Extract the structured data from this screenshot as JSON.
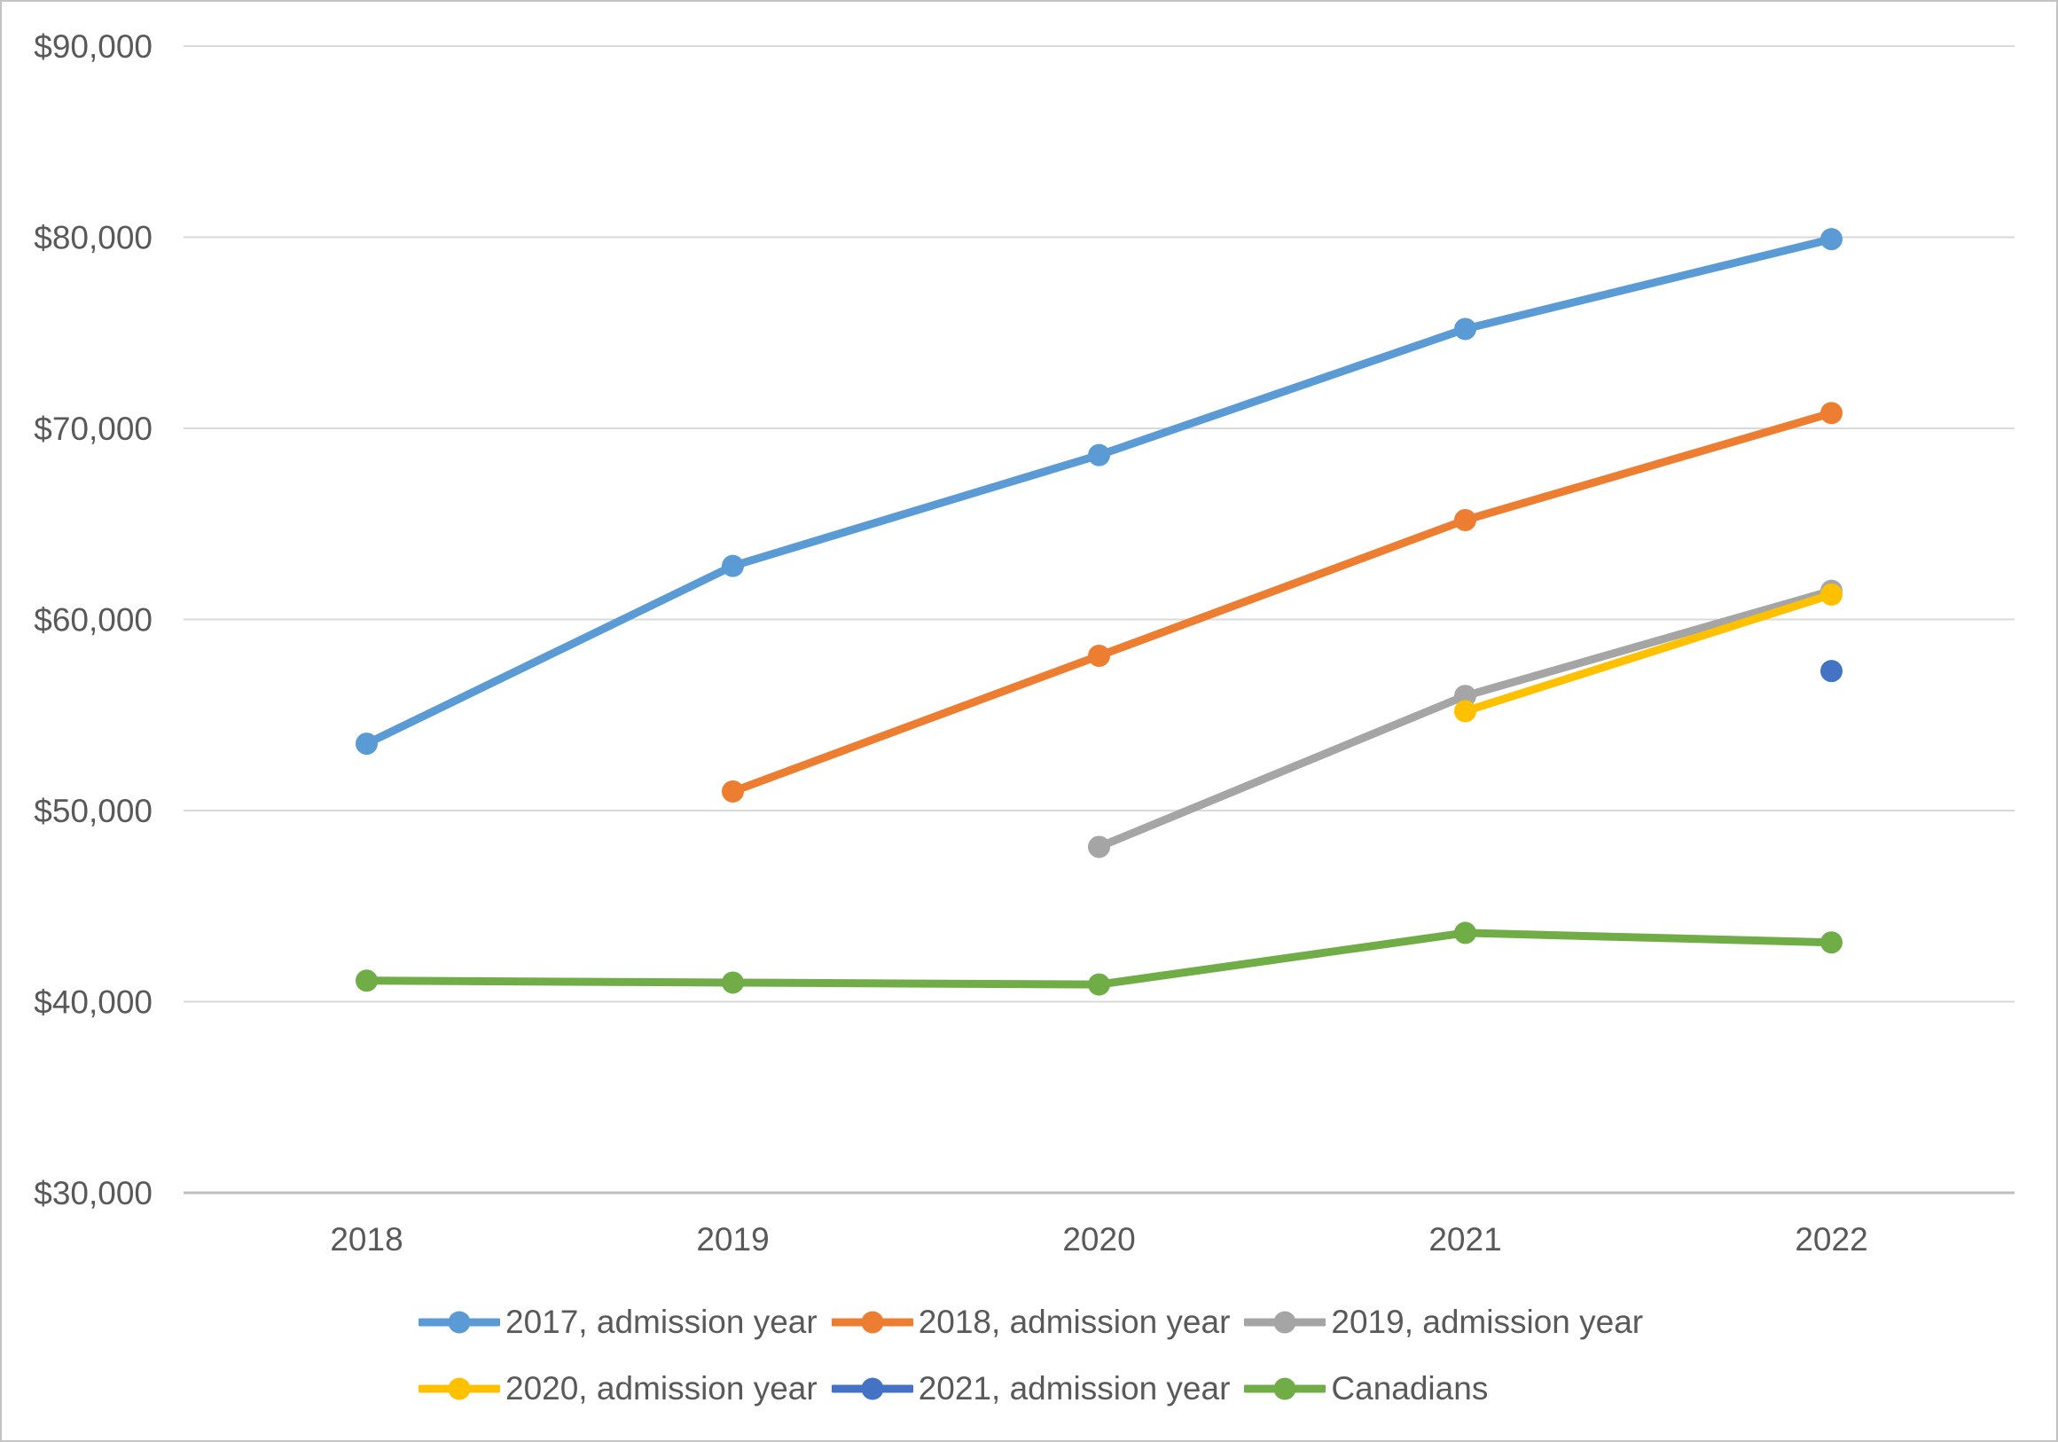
{
  "page": {
    "background": "#FFFFFF",
    "frame_border_color": "#C4C4C4"
  },
  "chart_data": {
    "type": "line",
    "title": "",
    "xlabel": "",
    "ylabel": "",
    "categories": [
      "2018",
      "2019",
      "2020",
      "2021",
      "2022"
    ],
    "series": [
      {
        "name": "2017, admission year",
        "color": "#5B9BD5",
        "values": [
          53500,
          62800,
          68600,
          75200,
          79900
        ]
      },
      {
        "name": "2018, admission year",
        "color": "#ED7D31",
        "values": [
          null,
          51000,
          58100,
          65200,
          70800
        ]
      },
      {
        "name": "2019, admission year",
        "color": "#A5A5A5",
        "values": [
          null,
          null,
          48100,
          56000,
          61500
        ]
      },
      {
        "name": "2020, admission year",
        "color": "#FFC000",
        "values": [
          null,
          null,
          null,
          55200,
          61300
        ]
      },
      {
        "name": "2021, admission year",
        "color": "#4472C4",
        "values": [
          null,
          null,
          null,
          null,
          57300
        ]
      },
      {
        "name": "Canadians",
        "color": "#70AD47",
        "values": [
          41100,
          41000,
          40900,
          43600,
          43100
        ]
      }
    ],
    "y_axis": {
      "min": 30000,
      "max": 90000,
      "tick_step": 10000,
      "ticks": [
        {
          "value": 90000,
          "label": "$90,000"
        },
        {
          "value": 80000,
          "label": "$80,000"
        },
        {
          "value": 70000,
          "label": "$70,000"
        },
        {
          "value": 60000,
          "label": "$60,000"
        },
        {
          "value": 50000,
          "label": "$50,000"
        },
        {
          "value": 40000,
          "label": "$40,000"
        },
        {
          "value": 30000,
          "label": "$30,000"
        }
      ]
    },
    "grid": true,
    "legend_position": "bottom",
    "legend_rows": [
      [
        "2017, admission year",
        "2018, admission year",
        "2019, admission year"
      ],
      [
        "2020, admission year",
        "2021, admission year",
        "Canadians"
      ]
    ],
    "styles": {
      "grid_color": "#D9D9D9",
      "axis_line_color": "#BFBFBF",
      "axis_text_color": "#595959",
      "line_width": 9,
      "marker_radius": 12.5
    }
  }
}
